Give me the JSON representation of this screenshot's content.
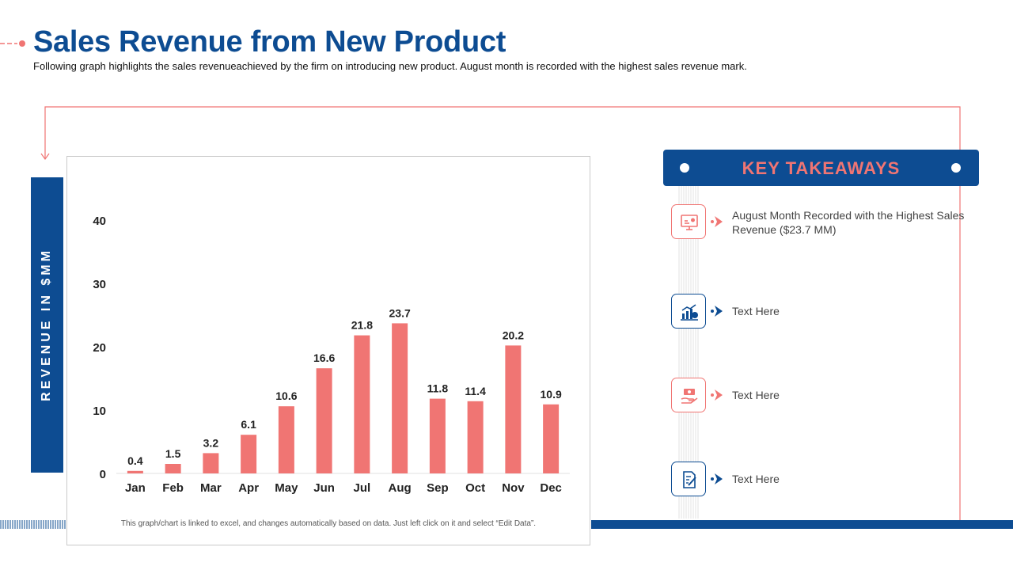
{
  "header": {
    "title": "Sales Revenue from New Product",
    "subtitle": "Following graph highlights the sales revenueachieved by the firm on introducing new product. August month is recorded with the highest sales revenue mark."
  },
  "side_label": "REVENUE IN $MM",
  "chart_note": "This graph/chart is linked to excel, and changes automatically based on data. Just left click on it and select “Edit Data”.",
  "colors": {
    "brand_blue": "#0d4c92",
    "accent_coral": "#f07573"
  },
  "chart_data": {
    "type": "bar",
    "categories": [
      "Jan",
      "Feb",
      "Mar",
      "Apr",
      "May",
      "Jun",
      "Jul",
      "Aug",
      "Sep",
      "Oct",
      "Nov",
      "Dec"
    ],
    "values": [
      0.4,
      1.5,
      3.2,
      6.1,
      10.6,
      16.6,
      21.8,
      23.7,
      11.8,
      11.4,
      20.2,
      10.9
    ],
    "value_labels": [
      "0.4",
      "1.5",
      "3.2",
      "6.1",
      "10.6",
      "16.6",
      "21.8",
      "23.7",
      "11.8",
      "11.4",
      "20.2",
      "10.9"
    ],
    "yticks": [
      "0",
      "10",
      "20",
      "30",
      "40"
    ],
    "ytick_values": [
      0,
      10,
      20,
      30,
      40
    ],
    "ylim": [
      0,
      40
    ],
    "title": "",
    "xlabel": "",
    "ylabel": "REVENUE IN $MM",
    "grid": false,
    "legend": "none",
    "bar_color": "#f07573"
  },
  "key_takeaways": {
    "title": "KEY TAKEAWAYS",
    "items": [
      {
        "icon": "presentation-chart-icon",
        "text": "August Month Recorded with the Highest Sales Revenue ($23.7 MM)",
        "color": "#f07573"
      },
      {
        "icon": "growth-chart-icon",
        "text": "Text Here",
        "color": "#0d4c92"
      },
      {
        "icon": "money-hand-icon",
        "text": "Text Here",
        "color": "#f07573"
      },
      {
        "icon": "document-edit-icon",
        "text": "Text Here",
        "color": "#0d4c92"
      }
    ]
  }
}
